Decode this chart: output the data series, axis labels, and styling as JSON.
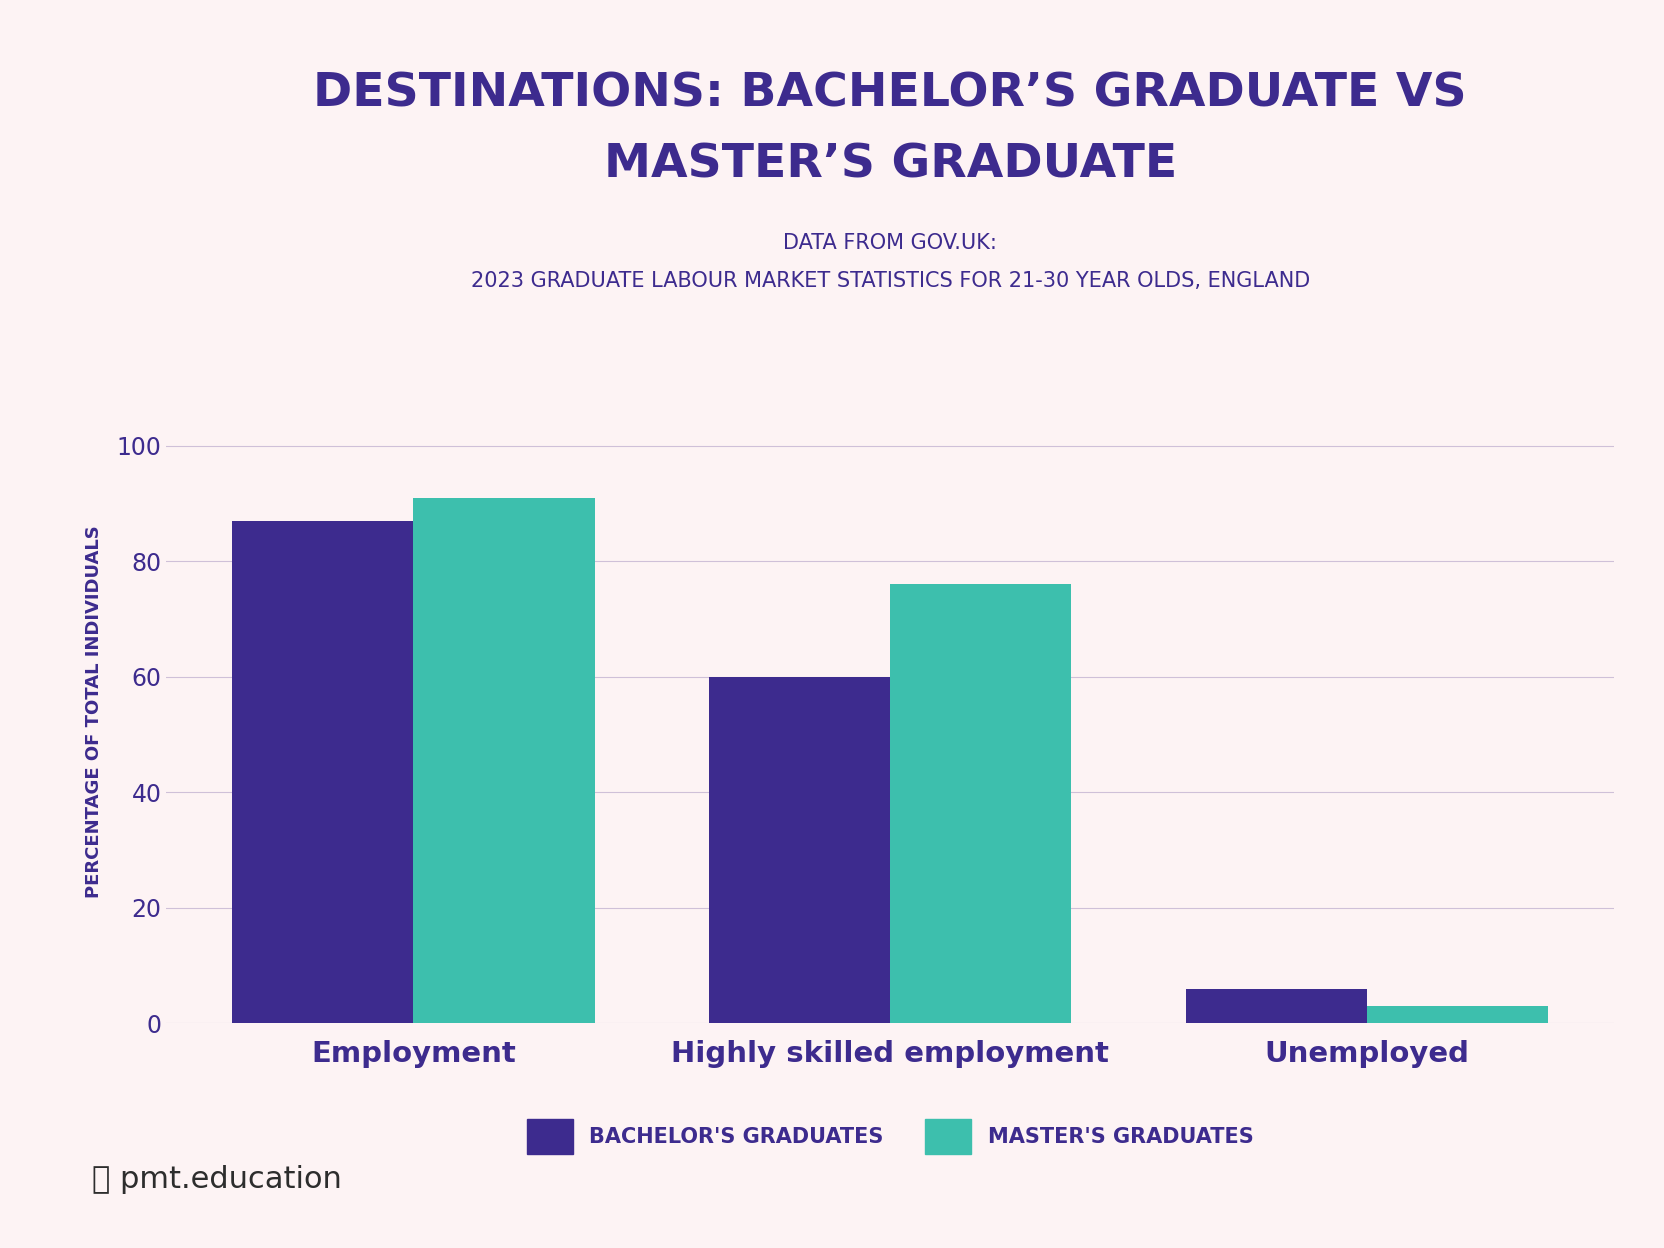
{
  "title_line1": "DESTINATIONS: BACHELOR’S GRADUATE VS",
  "title_line2": "MASTER’S GRADUATE",
  "subtitle_line1": "DATA FROM GOV.UK:",
  "subtitle_line2": "2023 GRADUATE LABOUR MARKET STATISTICS FOR 21-30 YEAR OLDS, ENGLAND",
  "categories": [
    "Employment",
    "Highly skilled employment",
    "Unemployed"
  ],
  "bachelor_values": [
    87,
    60,
    6
  ],
  "masters_values": [
    91,
    76,
    3
  ],
  "bachelor_color": "#3d2b8e",
  "masters_color": "#3dbfad",
  "ylabel": "PERCENTAGE OF TOTAL INDIVIDUALS",
  "ylim": [
    0,
    108
  ],
  "yticks": [
    0,
    20,
    40,
    60,
    80,
    100
  ],
  "background_color": "#fdf3f4",
  "title_color": "#3d2b8e",
  "subtitle_color": "#3d2b8e",
  "axis_color": "#3d2b8e",
  "tick_color": "#3d2b8e",
  "grid_color": "#cfc0d8",
  "legend_label_bachelor": "BACHELOR'S GRADUATES",
  "legend_label_masters": "MASTER'S GRADUATES",
  "title_fontsize": 34,
  "subtitle_fontsize": 15,
  "ylabel_fontsize": 13,
  "xtick_fontsize": 21,
  "ytick_fontsize": 17,
  "legend_fontsize": 15,
  "bar_width": 0.38
}
